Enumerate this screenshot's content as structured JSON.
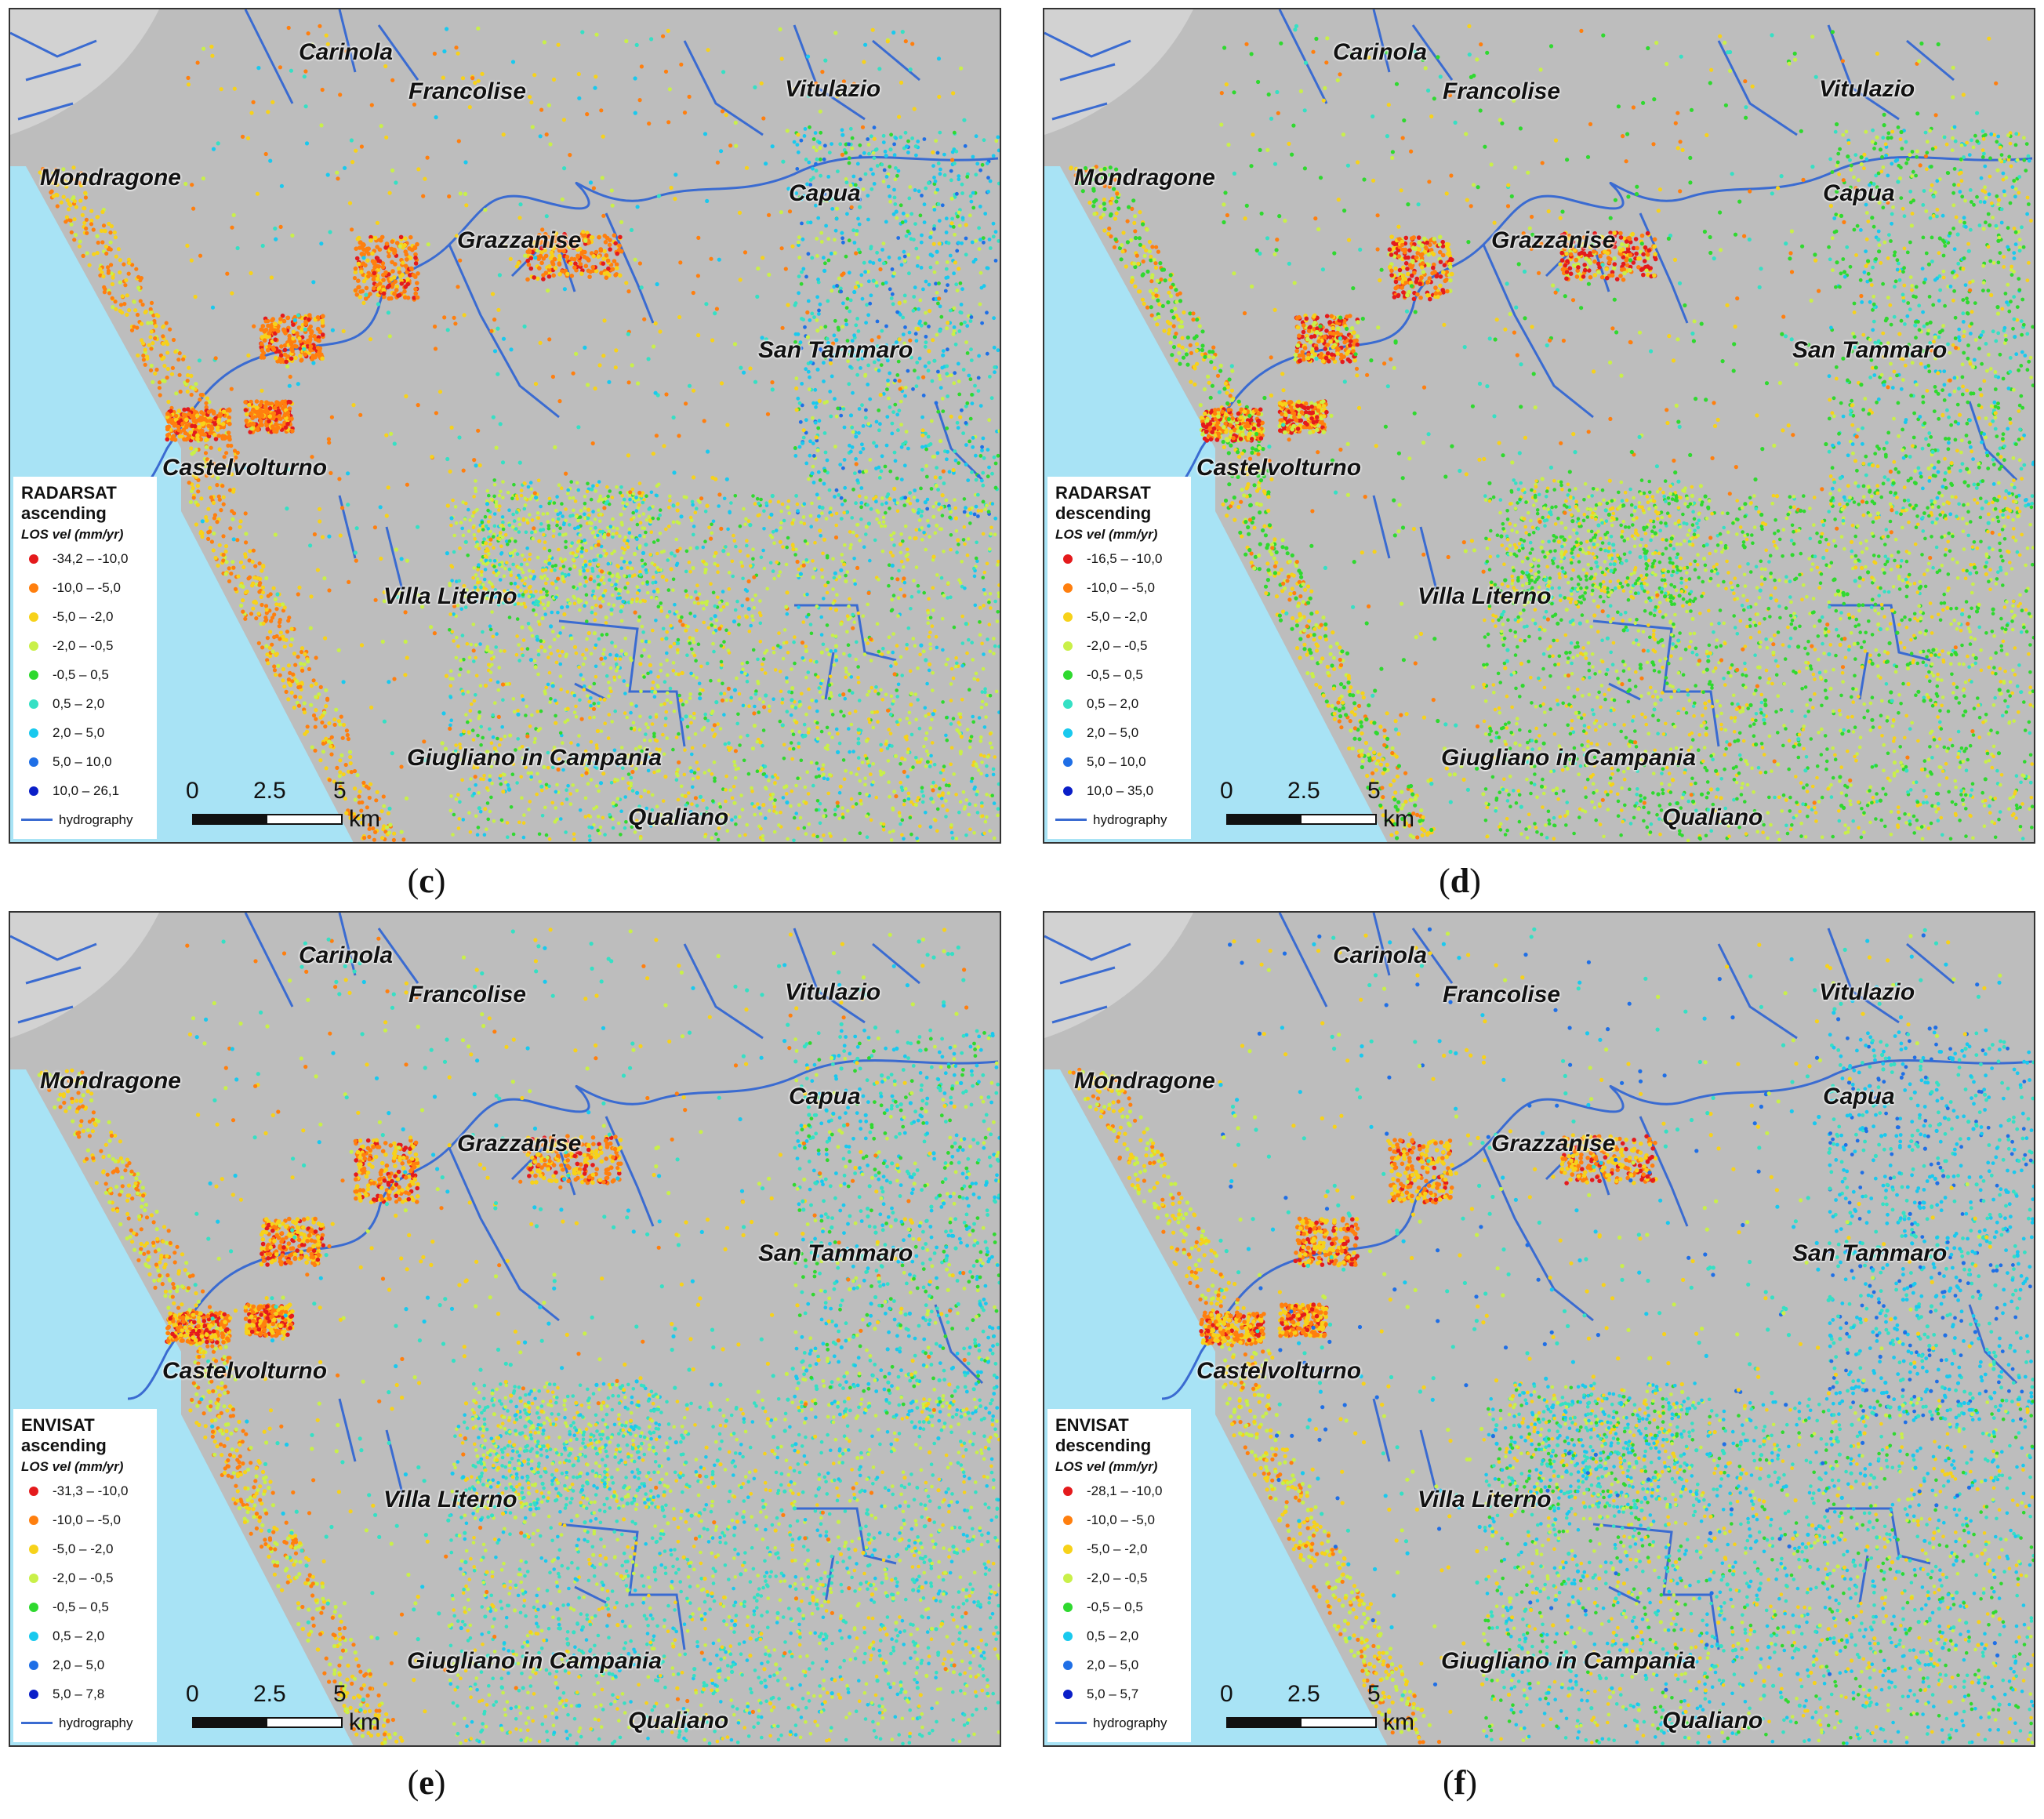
{
  "colors": {
    "sea": "#a8e3f5",
    "land": "#bdbdbd",
    "hydrography": "#3a6bd1",
    "classes": [
      "#e41a1c",
      "#ff7f0e",
      "#f7d21a",
      "#c9f049",
      "#2fd92f",
      "#35e0c4",
      "#19c9ee",
      "#1f6fe6",
      "#0a1ec8"
    ]
  },
  "places": [
    "Carinola",
    "Francolise",
    "Vitulazio",
    "Mondragone",
    "Capua",
    "Grazzanise",
    "San Tammaro",
    "Castelvolturno",
    "Villa Literno",
    "Giugliano in Campania",
    "Qualiano"
  ],
  "scale_bar": {
    "ticks": [
      "0",
      "2.5",
      "5"
    ],
    "unit": "km"
  },
  "panels": [
    {
      "id": "c",
      "caption": "c",
      "sensor": "RADARSAT",
      "orbit": "ascending",
      "legend_title": "LOS vel (mm/yr)",
      "classes": [
        "-34,2 – -10,0",
        "-10,0 – -5,0",
        "-5,0 – -2,0",
        "-2,0 – -0,5",
        "-0,5 – 0,5",
        "0,5 – 2,0",
        "2,0 – 5,0",
        "5,0 – 10,0",
        "10,0 – 26,1"
      ],
      "hydrography_label": "hydrography"
    },
    {
      "id": "d",
      "caption": "d",
      "sensor": "RADARSAT",
      "orbit": "descending",
      "legend_title": "LOS vel (mm/yr)",
      "classes": [
        "-16,5 – -10,0",
        "-10,0 – -5,0",
        "-5,0 – -2,0",
        "-2,0 – -0,5",
        "-0,5 – 0,5",
        "0,5 – 2,0",
        "2,0 – 5,0",
        "5,0 – 10,0",
        "10,0 – 35,0"
      ],
      "hydrography_label": "hydrography"
    },
    {
      "id": "e",
      "caption": "e",
      "sensor": "ENVISAT",
      "orbit": "ascending",
      "legend_title": "LOS vel (mm/yr)",
      "classes": [
        "-31,3 – -10,0",
        "-10,0 – -5,0",
        "-5,0 – -2,0",
        "-2,0 – -0,5",
        "-0,5 – 0,5",
        "0,5 – 2,0",
        "2,0 – 5,0",
        "5,0 – 7,8"
      ],
      "hydrography_label": "hydrography"
    },
    {
      "id": "f",
      "caption": "f",
      "sensor": "ENVISAT",
      "orbit": "descending",
      "legend_title": "LOS vel (mm/yr)",
      "classes": [
        "-28,1 – -10,0",
        "-10,0 – -5,0",
        "-5,0 – -2,0",
        "-2,0 – -0,5",
        "-0,5 – 0,5",
        "0,5 – 2,0",
        "2,0 – 5,0",
        "5,0 – 5,7"
      ],
      "hydrography_label": "hydrography"
    }
  ]
}
